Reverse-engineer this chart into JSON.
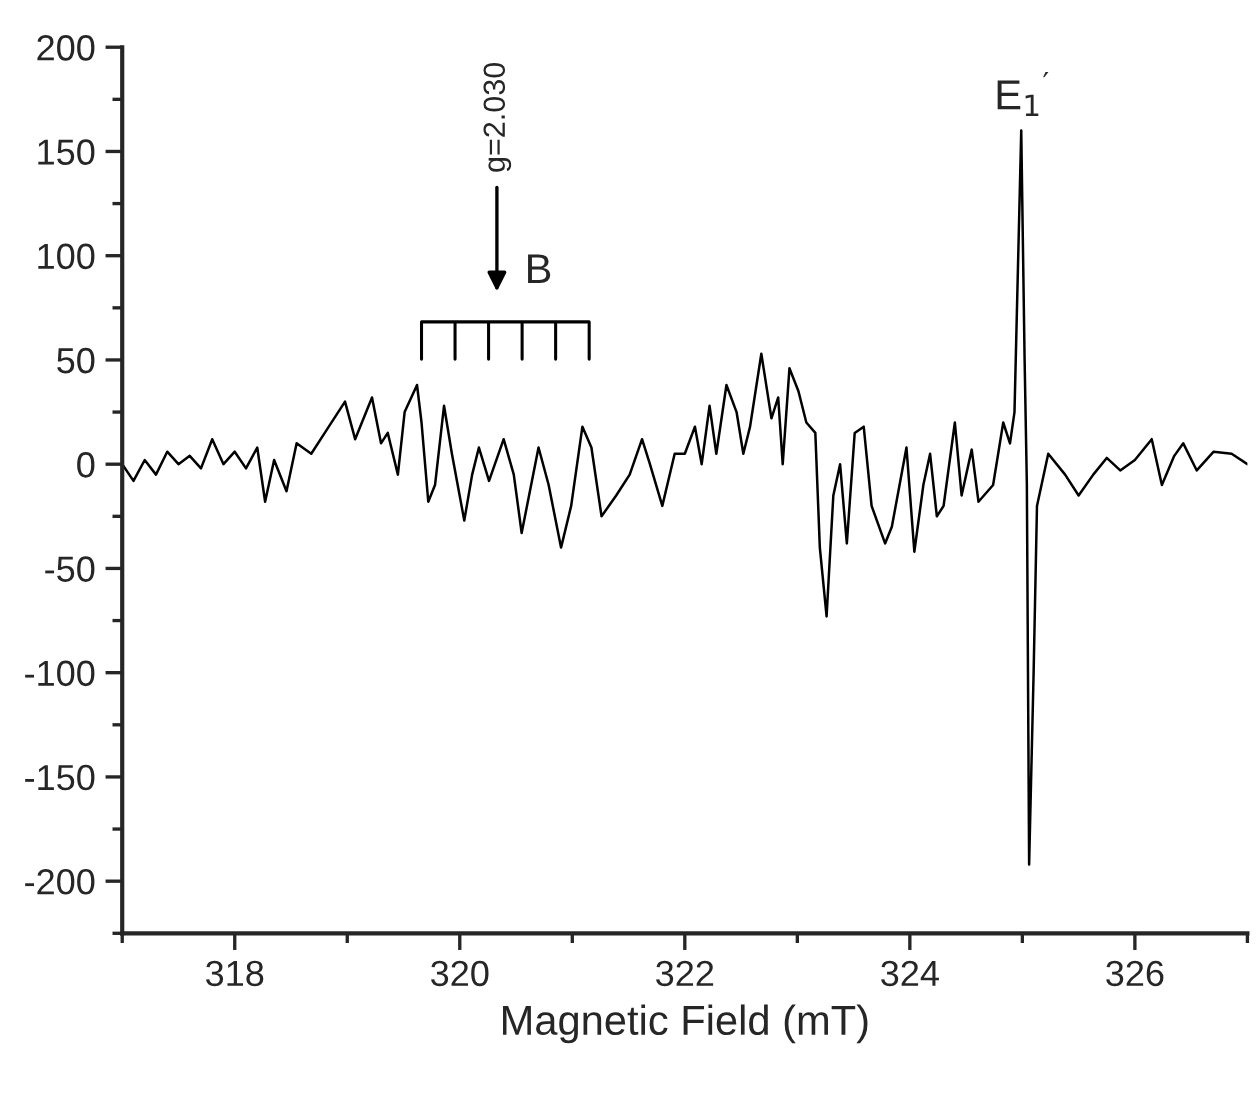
{
  "chart_data": {
    "type": "line",
    "xlabel": "Magnetic Field (mT)",
    "xlim": [
      317,
      327
    ],
    "xticks": [
      318,
      320,
      322,
      324,
      326
    ],
    "ylim": [
      -225,
      200
    ],
    "yticks": [
      -200,
      -150,
      -100,
      -50,
      0,
      50,
      100,
      150,
      200
    ],
    "grid": false,
    "legend": false,
    "marker": "none",
    "line_style": "solid",
    "series": [
      {
        "color": "#000000",
        "x": [
          317.0,
          317.1,
          317.2,
          317.3,
          317.4,
          317.5,
          317.6,
          317.7,
          317.8,
          317.9,
          318.0,
          318.1,
          318.2,
          318.27,
          318.35,
          318.46,
          318.55,
          318.68,
          318.8,
          318.98,
          319.07,
          319.22,
          319.3,
          319.36,
          319.45,
          319.51,
          319.62,
          319.66,
          319.72,
          319.78,
          319.86,
          319.93,
          320.04,
          320.11,
          320.17,
          320.26,
          320.39,
          320.48,
          320.55,
          320.7,
          320.79,
          320.9,
          320.99,
          321.09,
          321.17,
          321.26,
          321.39,
          321.51,
          321.62,
          321.69,
          321.8,
          321.91,
          322.0,
          322.09,
          322.15,
          322.22,
          322.28,
          322.37,
          322.46,
          322.52,
          322.58,
          322.68,
          322.77,
          322.83,
          322.87,
          322.93,
          323.01,
          323.08,
          323.16,
          323.2,
          323.26,
          323.32,
          323.38,
          323.44,
          323.51,
          323.59,
          323.66,
          323.78,
          323.84,
          323.97,
          324.04,
          324.12,
          324.18,
          324.24,
          324.3,
          324.4,
          324.46,
          324.55,
          324.61,
          324.74,
          324.83,
          324.89,
          324.93,
          324.99,
          325.02,
          325.04,
          325.06,
          325.1,
          325.13,
          325.23,
          325.38,
          325.5,
          325.63,
          325.75,
          325.87,
          326.0,
          326.15,
          326.24,
          326.35,
          326.43,
          326.55,
          326.7,
          326.86,
          327.0
        ],
        "values": [
          0,
          -8,
          2,
          -5,
          6,
          0,
          4,
          -2,
          12,
          0,
          6,
          -2,
          8,
          -18,
          2,
          -13,
          10,
          5,
          15,
          30,
          12,
          32,
          10,
          15,
          -5,
          25,
          38,
          20,
          -18,
          -10,
          28,
          5,
          -27,
          -5,
          8,
          -8,
          12,
          -5,
          -33,
          8,
          -10,
          -40,
          -20,
          18,
          8,
          -25,
          -15,
          -5,
          12,
          0,
          -20,
          5,
          5,
          18,
          0,
          28,
          5,
          38,
          25,
          5,
          18,
          53,
          22,
          32,
          0,
          46,
          35,
          20,
          15,
          -40,
          -73,
          -15,
          0,
          -38,
          15,
          18,
          -20,
          -38,
          -30,
          8,
          -42,
          -10,
          5,
          -25,
          -20,
          20,
          -15,
          7,
          -18,
          -10,
          20,
          10,
          25,
          160,
          50,
          -10,
          -192,
          -100,
          -20,
          5,
          -5,
          -15,
          -5,
          3,
          -3,
          2,
          12,
          -10,
          4,
          10,
          -3,
          6,
          5,
          0
        ]
      }
    ],
    "annotations": [
      "g=2.030",
      "B",
      "E$_{1}$$^{′}$"
    ]
  }
}
